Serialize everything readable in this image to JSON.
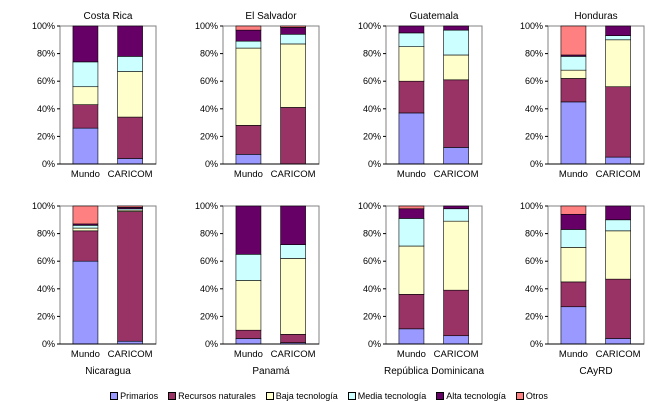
{
  "chart_data": {
    "type": "bar",
    "stacked": true,
    "legend_position": "bottom",
    "legend": [
      "Primarios",
      "Recursos naturales",
      "Baja tecnología",
      "Media tecnología",
      "Alta tecnología",
      "Otros"
    ],
    "colors": [
      "#9999ff",
      "#993366",
      "#ffffcc",
      "#ccffff",
      "#660066",
      "#ff8080"
    ],
    "yticks": [
      "0%",
      "20%",
      "40%",
      "60%",
      "80%",
      "100%"
    ],
    "ylim": [
      0,
      100
    ],
    "panels": [
      {
        "title": "Costa Rica",
        "title_position": "top",
        "categories": [
          "Mundo",
          "CARICOM"
        ],
        "values": [
          [
            26,
            17,
            13,
            18,
            26,
            0
          ],
          [
            4,
            30,
            33,
            11,
            22,
            0
          ]
        ]
      },
      {
        "title": "El Salvador",
        "title_position": "top",
        "categories": [
          "Mundo",
          "CARICOM"
        ],
        "values": [
          [
            7,
            21,
            56,
            5,
            8,
            3
          ],
          [
            0,
            41,
            46,
            7,
            5,
            1
          ]
        ]
      },
      {
        "title": "Guatemala",
        "title_position": "top",
        "categories": [
          "Mundo",
          "CARICOM"
        ],
        "values": [
          [
            37,
            23,
            25,
            10,
            5,
            0
          ],
          [
            12,
            49,
            18,
            18,
            3,
            0
          ]
        ]
      },
      {
        "title": "Honduras",
        "title_position": "top",
        "categories": [
          "Mundo",
          "CARICOM"
        ],
        "values": [
          [
            45,
            17,
            6,
            10,
            1,
            21
          ],
          [
            5,
            51,
            34,
            3,
            7,
            0
          ]
        ]
      },
      {
        "title": "Nicaragua",
        "title_position": "bottom",
        "categories": [
          "Mundo",
          "CARICOM"
        ],
        "values": [
          [
            60,
            22,
            2,
            2,
            1,
            13
          ],
          [
            2,
            94,
            1,
            1,
            1,
            1
          ]
        ]
      },
      {
        "title": "Panamá",
        "title_position": "bottom",
        "categories": [
          "Mundo",
          "CARICOM"
        ],
        "values": [
          [
            4,
            6,
            36,
            19,
            35,
            0
          ],
          [
            1,
            6,
            55,
            10,
            28,
            0
          ]
        ]
      },
      {
        "title": "República Dominicana",
        "title_position": "bottom",
        "categories": [
          "Mundo",
          "CARICOM"
        ],
        "values": [
          [
            11,
            25,
            35,
            20,
            7,
            2
          ],
          [
            6,
            33,
            50,
            9,
            2,
            0
          ]
        ]
      },
      {
        "title": "CAyRD",
        "title_position": "bottom",
        "categories": [
          "Mundo",
          "CARICOM"
        ],
        "values": [
          [
            27,
            18,
            25,
            13,
            11,
            6
          ],
          [
            4,
            43,
            35,
            8,
            10,
            0
          ]
        ]
      }
    ]
  }
}
